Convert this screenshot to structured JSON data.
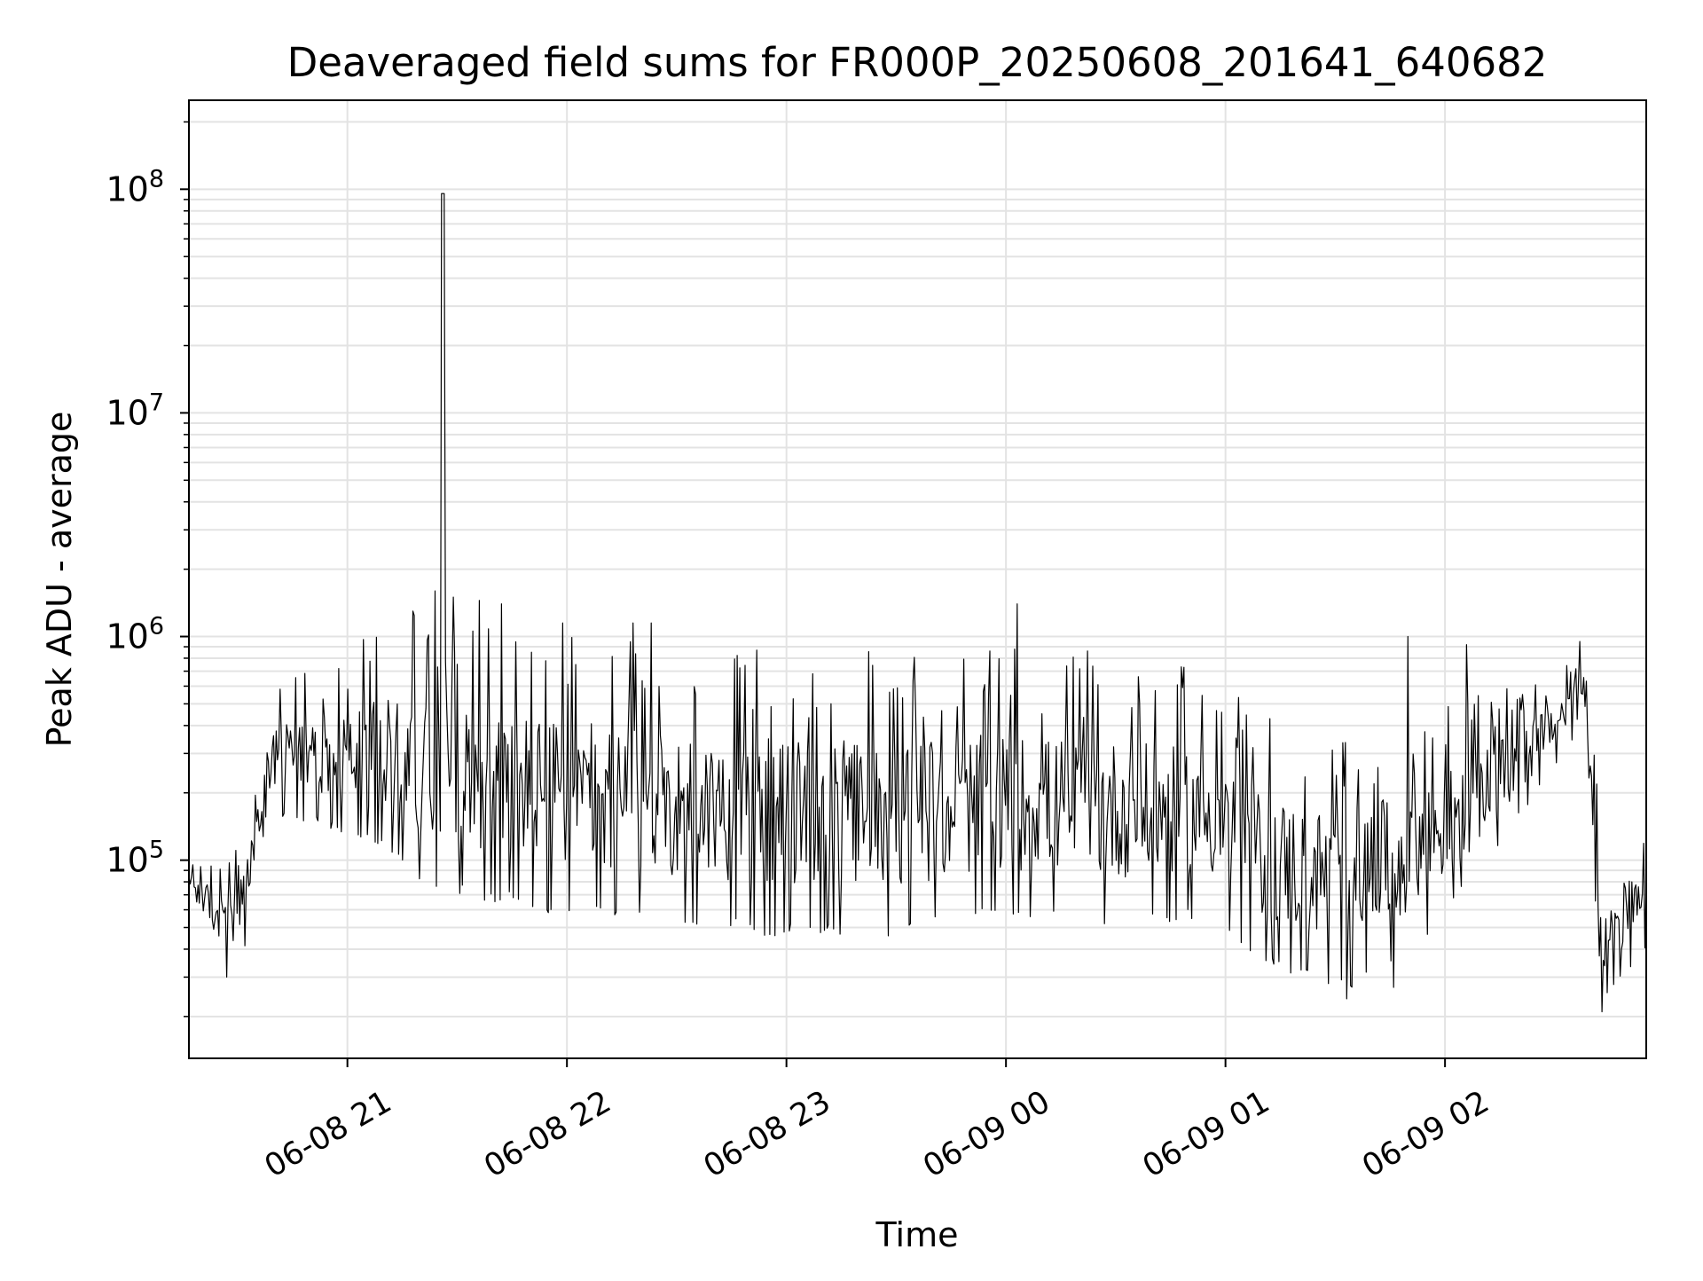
{
  "chart_data": {
    "type": "line",
    "title": "Deaveraged field sums for FR000P_20250608_201641_640682",
    "xlabel": "Time",
    "ylabel": "Peak ADU - average",
    "yscale": "log",
    "xlim": [
      "2025-06-08 20:16:41",
      "2025-06-09 02:55:00"
    ],
    "ylim": [
      13000,
      250000000
    ],
    "grid": true,
    "x_ticks": [
      {
        "t": "2025-06-08 21:00",
        "label": "06-08 21"
      },
      {
        "t": "2025-06-08 22:00",
        "label": "06-08 22"
      },
      {
        "t": "2025-06-08 23:00",
        "label": "06-08 23"
      },
      {
        "t": "2025-06-09 00:00",
        "label": "06-09 00"
      },
      {
        "t": "2025-06-09 01:00",
        "label": "06-09 01"
      },
      {
        "t": "2025-06-09 02:00",
        "label": "06-09 02"
      }
    ],
    "y_ticks": [
      {
        "v": 100000,
        "base": "10",
        "exp": "5"
      },
      {
        "v": 1000000,
        "base": "10",
        "exp": "6"
      },
      {
        "v": 10000000,
        "base": "10",
        "exp": "7"
      },
      {
        "v": 100000000,
        "base": "10",
        "exp": "8"
      }
    ],
    "series": [
      {
        "line_color": "#000000",
        "envelope": [
          {
            "t": "2025-06-08 20:16:41",
            "lo": 60000,
            "hi": 130000
          },
          {
            "t": "2025-06-08 20:22",
            "lo": 45000,
            "hi": 100000
          },
          {
            "t": "2025-06-08 20:27",
            "lo": 30000,
            "hi": 95000
          },
          {
            "t": "2025-06-08 20:32",
            "lo": 40000,
            "hi": 130000
          },
          {
            "t": "2025-06-08 20:38",
            "lo": 160000,
            "hi": 450000
          },
          {
            "t": "2025-06-08 20:43",
            "lo": 150000,
            "hi": 750000
          },
          {
            "t": "2025-06-08 20:50",
            "lo": 150000,
            "hi": 700000
          },
          {
            "t": "2025-06-08 21:00",
            "lo": 130000,
            "hi": 900000
          },
          {
            "t": "2025-06-08 21:10",
            "lo": 110000,
            "hi": 1100000
          },
          {
            "t": "2025-06-08 21:20",
            "lo": 80000,
            "hi": 1300000
          },
          {
            "t": "2025-06-08 21:30",
            "lo": 70000,
            "hi": 1300000
          },
          {
            "t": "2025-06-08 21:40",
            "lo": 65000,
            "hi": 1200000
          },
          {
            "t": "2025-06-08 22:00",
            "lo": 55000,
            "hi": 1100000
          },
          {
            "t": "2025-06-08 22:30",
            "lo": 50000,
            "hi": 950000
          },
          {
            "t": "2025-06-08 23:00",
            "lo": 45000,
            "hi": 900000
          },
          {
            "t": "2025-06-08 23:30",
            "lo": 45000,
            "hi": 900000
          },
          {
            "t": "2025-06-09 00:00",
            "lo": 55000,
            "hi": 900000
          },
          {
            "t": "2025-06-09 00:30",
            "lo": 50000,
            "hi": 850000
          },
          {
            "t": "2025-06-09 00:55",
            "lo": 55000,
            "hi": 700000
          },
          {
            "t": "2025-06-09 01:10",
            "lo": 35000,
            "hi": 450000
          },
          {
            "t": "2025-06-09 01:30",
            "lo": 25000,
            "hi": 400000
          },
          {
            "t": "2025-06-09 01:50",
            "lo": 35000,
            "hi": 450000
          },
          {
            "t": "2025-06-09 02:10",
            "lo": 90000,
            "hi": 550000
          },
          {
            "t": "2025-06-09 02:25",
            "lo": 200000,
            "hi": 650000
          },
          {
            "t": "2025-06-09 02:38",
            "lo": 400000,
            "hi": 900000
          },
          {
            "t": "2025-06-09 02:40",
            "lo": 120000,
            "hi": 500000
          },
          {
            "t": "2025-06-09 02:43",
            "lo": 22000,
            "hi": 150000
          },
          {
            "t": "2025-06-09 02:55",
            "lo": 40000,
            "hi": 120000
          }
        ],
        "peaks": [
          {
            "t": "2025-06-08 21:26",
            "v": 170000000
          },
          {
            "t": "2025-06-08 21:24",
            "v": 1600000
          },
          {
            "t": "2025-06-08 21:18",
            "v": 1300000
          },
          {
            "t": "2025-06-08 21:29",
            "v": 1500000
          },
          {
            "t": "2025-06-08 21:36",
            "v": 1450000
          },
          {
            "t": "2025-06-08 21:42",
            "v": 1400000
          },
          {
            "t": "2025-06-08 21:59",
            "v": 1150000
          },
          {
            "t": "2025-06-08 22:18",
            "v": 1150000
          },
          {
            "t": "2025-06-08 22:23",
            "v": 1150000
          },
          {
            "t": "2025-06-09 00:03",
            "v": 1400000
          },
          {
            "t": "2025-06-09 01:50",
            "v": 1000000
          },
          {
            "t": "2025-06-09 02:06",
            "v": 920000
          },
          {
            "t": "2025-06-09 02:37",
            "v": 950000
          }
        ],
        "troughs": [
          {
            "t": "2025-06-08 20:27",
            "v": 30000
          },
          {
            "t": "2025-06-09 01:33",
            "v": 24000
          },
          {
            "t": "2025-06-09 01:46",
            "v": 27000
          },
          {
            "t": "2025-06-09 02:43",
            "v": 21000
          }
        ]
      }
    ]
  }
}
